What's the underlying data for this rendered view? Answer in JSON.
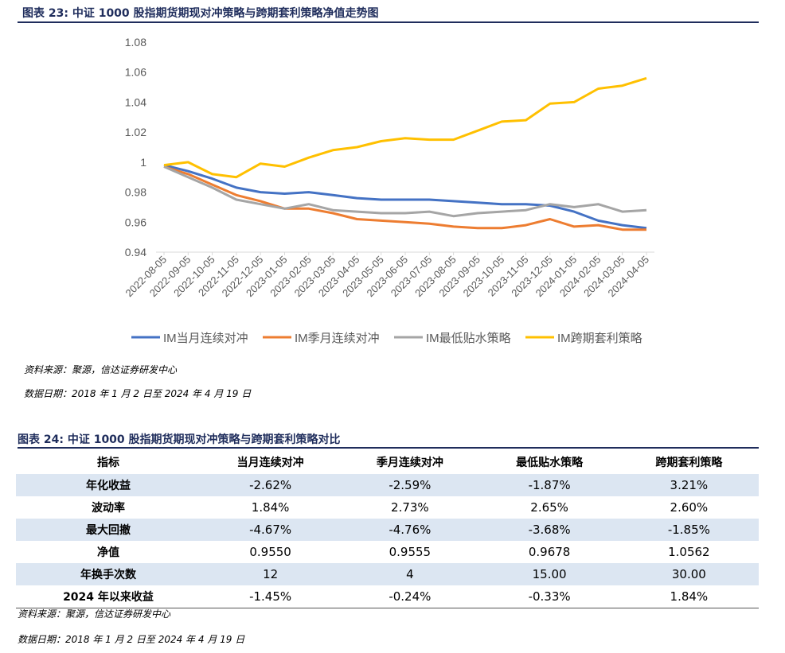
{
  "figure1": {
    "title": "图表 23:  中证 1000 股指期货期现对冲策略与跨期套利策略净值走势图",
    "source": "资料来源：聚源，信达证券研发中心",
    "date_note": "数据日期：2018 年 1 月 2 日至 2024 年 4 月 19 日"
  },
  "chart_data": {
    "type": "line",
    "title": "",
    "xlabel": "",
    "ylabel": "",
    "ylim": [
      0.94,
      1.08
    ],
    "yticks": [
      "0.94",
      "0.96",
      "0.98",
      "1",
      "1.02",
      "1.04",
      "1.06",
      "1.08"
    ],
    "x": [
      "2022-08-05",
      "2022-09-05",
      "2022-10-05",
      "2022-11-05",
      "2022-12-05",
      "2023-01-05",
      "2023-02-05",
      "2023-03-05",
      "2023-04-05",
      "2023-05-05",
      "2023-06-05",
      "2023-07-05",
      "2023-08-05",
      "2023-09-05",
      "2023-10-05",
      "2023-11-05",
      "2023-12-05",
      "2024-01-05",
      "2024-02-05",
      "2024-03-05",
      "2024-04-05"
    ],
    "grid": false,
    "legend": "bottom",
    "series": [
      {
        "name": "IM当月连续对冲",
        "color": "#4472c4",
        "values": [
          0.998,
          0.994,
          0.989,
          0.983,
          0.98,
          0.979,
          0.98,
          0.978,
          0.976,
          0.975,
          0.975,
          0.975,
          0.974,
          0.973,
          0.972,
          0.972,
          0.971,
          0.967,
          0.961,
          0.958,
          0.956
        ]
      },
      {
        "name": "IM季月连续对冲",
        "color": "#ed7d31",
        "values": [
          0.997,
          0.992,
          0.985,
          0.978,
          0.974,
          0.969,
          0.969,
          0.966,
          0.962,
          0.961,
          0.96,
          0.959,
          0.957,
          0.956,
          0.956,
          0.958,
          0.962,
          0.957,
          0.958,
          0.955,
          0.955
        ]
      },
      {
        "name": "IM最低贴水策略",
        "color": "#a5a5a5",
        "values": [
          0.997,
          0.99,
          0.983,
          0.975,
          0.972,
          0.969,
          0.972,
          0.968,
          0.967,
          0.966,
          0.966,
          0.967,
          0.964,
          0.966,
          0.967,
          0.968,
          0.972,
          0.97,
          0.972,
          0.967,
          0.968
        ]
      },
      {
        "name": "IM跨期套利策略",
        "color": "#ffc000",
        "values": [
          0.998,
          1.0,
          0.992,
          0.99,
          0.999,
          0.997,
          1.003,
          1.008,
          1.01,
          1.014,
          1.016,
          1.015,
          1.015,
          1.021,
          1.027,
          1.028,
          1.039,
          1.04,
          1.049,
          1.051,
          1.056
        ]
      }
    ]
  },
  "figure2": {
    "title": "图表 24:  中证 1000 股指期货期现对冲策略与跨期套利策略对比",
    "source": "资料来源：聚源，信达证券研发中心",
    "date_note": "数据日期：2018 年 1 月 2 日至 2024 年 4 月 19 日"
  },
  "table": {
    "headers": [
      "指标",
      "当月连续对冲",
      "季月连续对冲",
      "最低贴水策略",
      "跨期套利策略"
    ],
    "rows": [
      [
        "年化收益",
        "-2.62%",
        "-2.59%",
        "-1.87%",
        "3.21%"
      ],
      [
        "波动率",
        "1.84%",
        "2.73%",
        "2.65%",
        "2.60%"
      ],
      [
        "最大回撤",
        "-4.67%",
        "-4.76%",
        "-3.68%",
        "-1.85%"
      ],
      [
        "净值",
        "0.9550",
        "0.9555",
        "0.9678",
        "1.0562"
      ],
      [
        "年换手次数",
        "12",
        "4",
        "15.00",
        "30.00"
      ],
      [
        "2024 年以来收益",
        "-1.45%",
        "-0.24%",
        "-0.33%",
        "1.84%"
      ]
    ]
  }
}
